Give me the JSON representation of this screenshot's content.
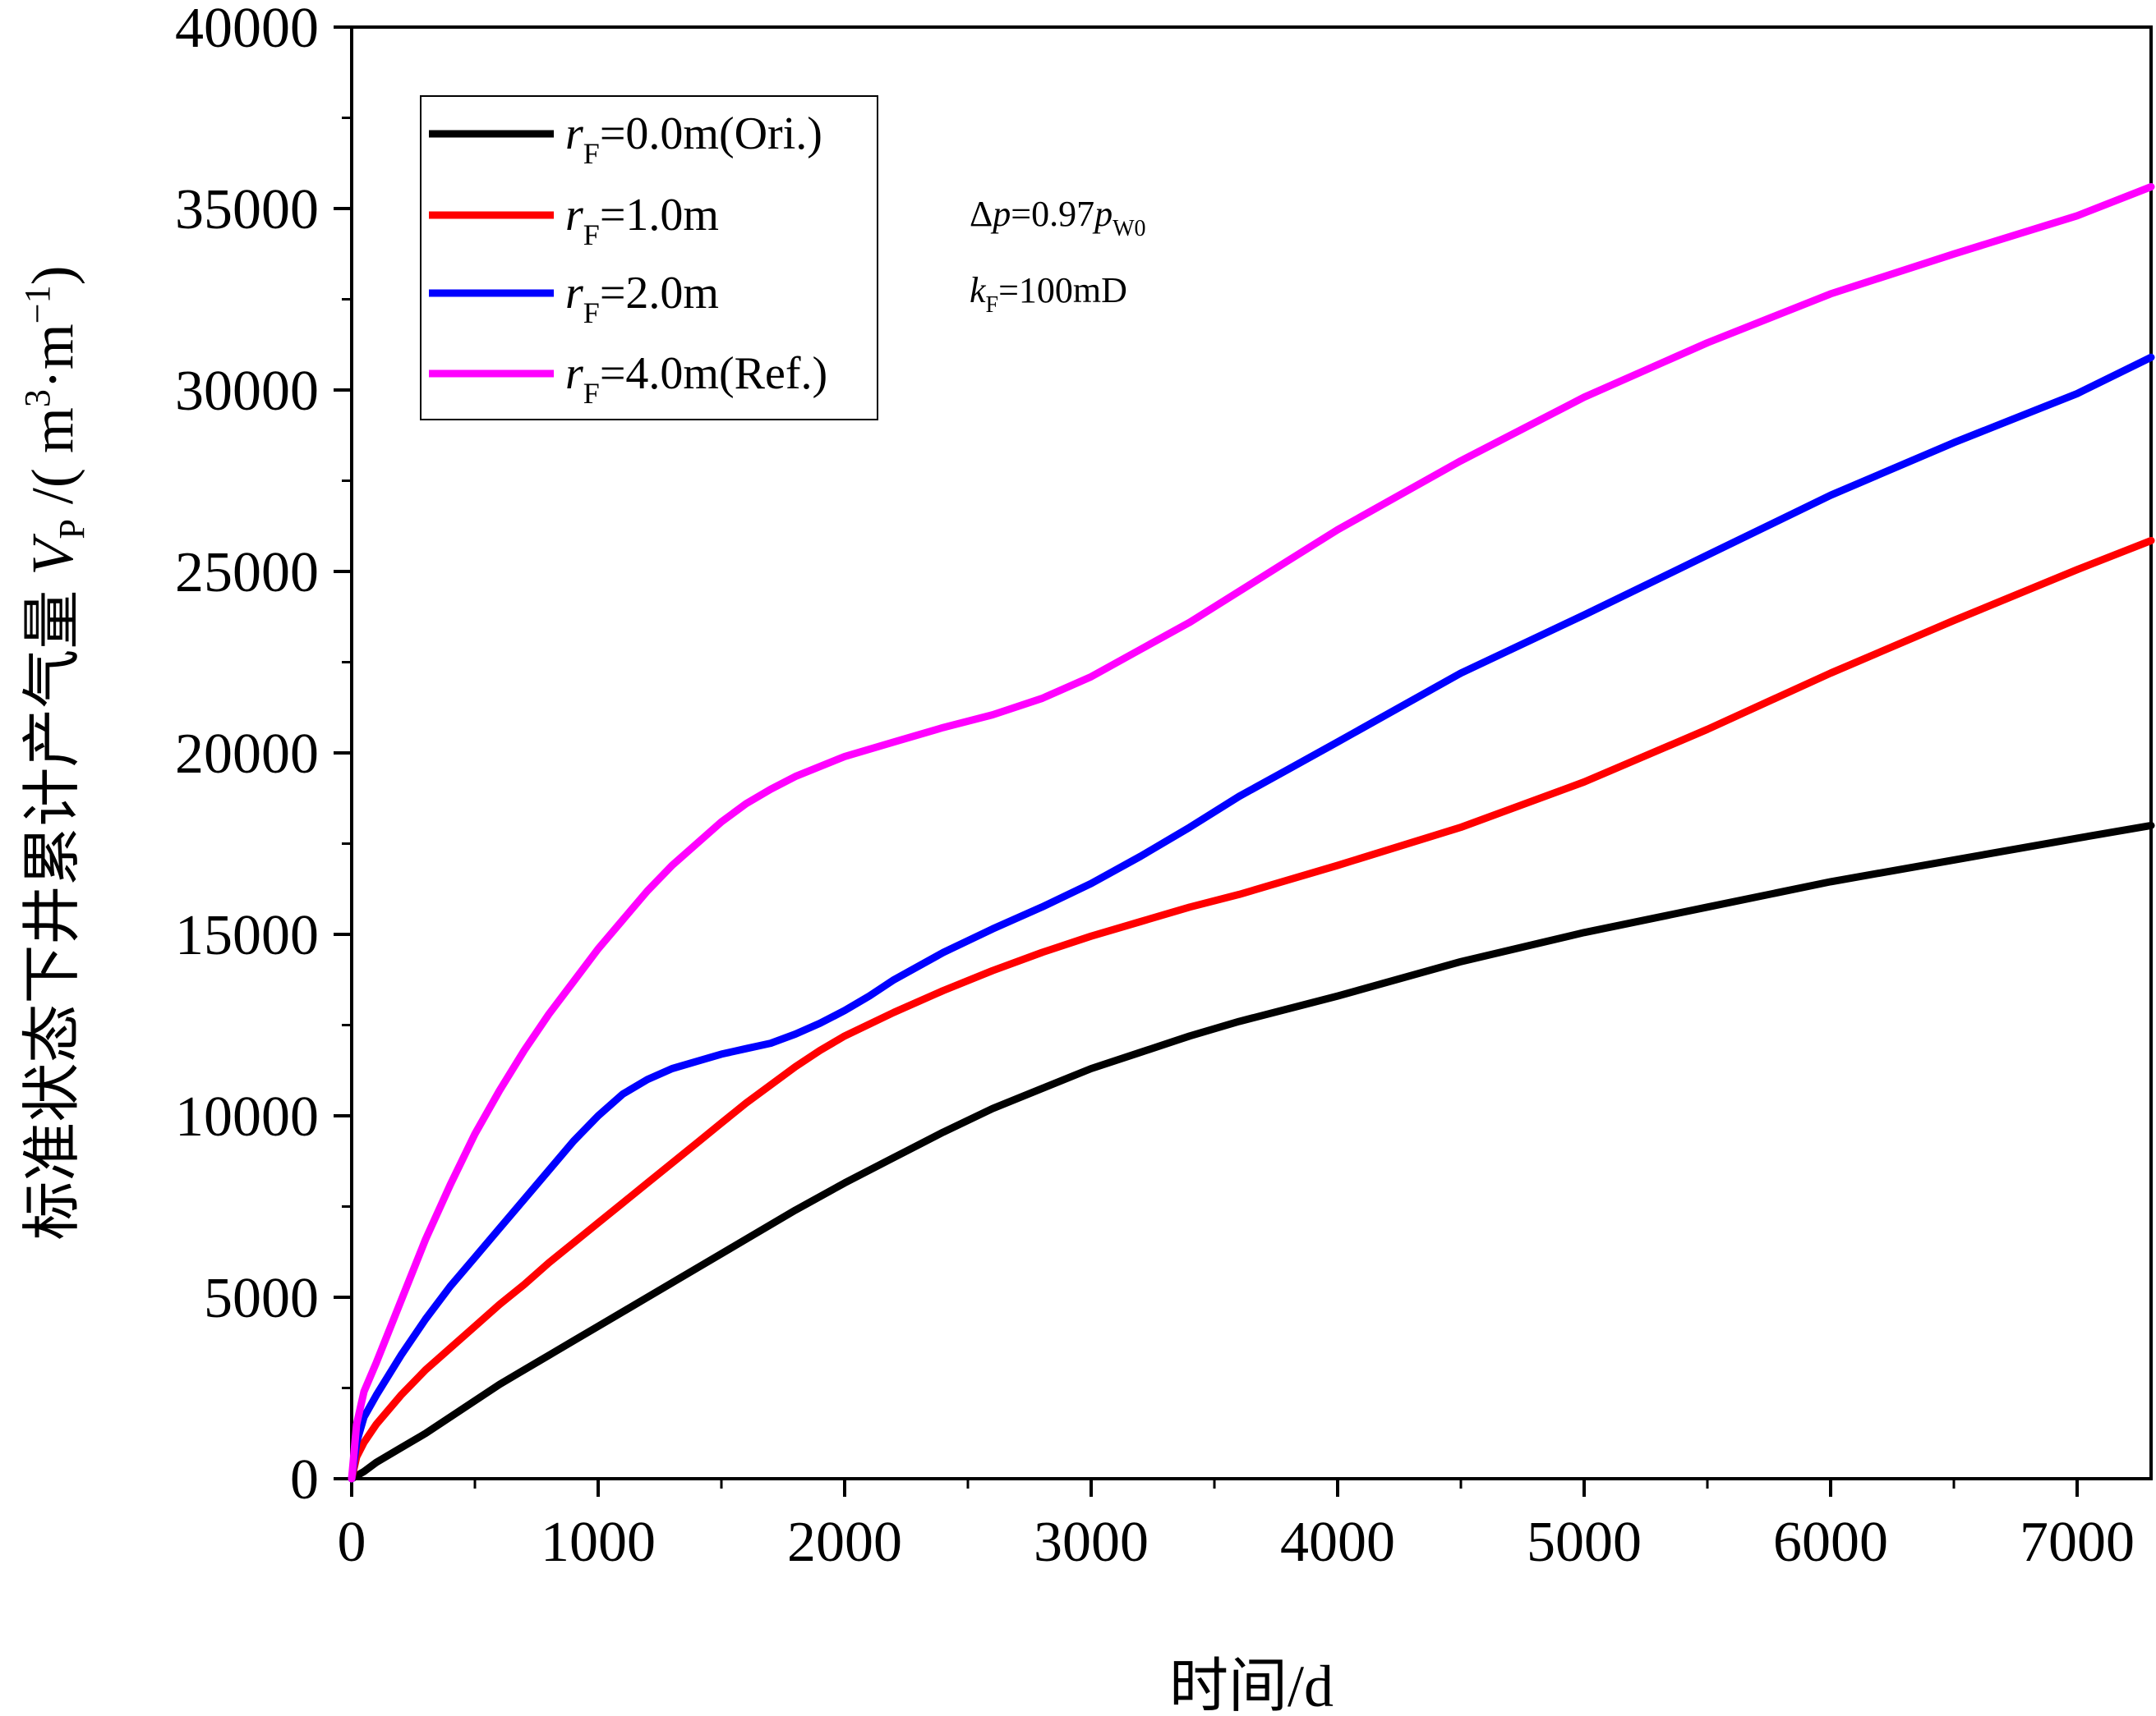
{
  "chart_data": {
    "type": "line",
    "title": "",
    "xlabel": "时间/d",
    "ylabel": {
      "prefix": "标准状态下井累计产气量 ",
      "var": "V",
      "var_sub": "P",
      "unit_open": " /( m",
      "unit_sup1": "3",
      "unit_mid": "·m",
      "unit_sup2": "−1",
      "unit_close": ")"
    },
    "xlim": [
      0,
      7300
    ],
    "ylim": [
      0,
      40000
    ],
    "x_ticks": [
      0,
      1000,
      2000,
      3000,
      4000,
      5000,
      6000,
      7000
    ],
    "y_ticks": [
      0,
      5000,
      10000,
      15000,
      20000,
      25000,
      30000,
      35000,
      40000
    ],
    "grid": false,
    "legend_position": "top-left",
    "annotations": [
      {
        "prefix": "Δ",
        "var": "p",
        "eq": "=0.97",
        "var2": "p",
        "sub2": "W0"
      },
      {
        "var": "k",
        "sub": "F",
        "eq": "=100mD"
      }
    ],
    "series": [
      {
        "label_var": "r",
        "label_sub": "F",
        "label_rest": "=0.0m(Ori.)",
        "color": "#000000",
        "points": [
          [
            0,
            0
          ],
          [
            50,
            200
          ],
          [
            100,
            450
          ],
          [
            200,
            850
          ],
          [
            300,
            1250
          ],
          [
            400,
            1700
          ],
          [
            500,
            2150
          ],
          [
            600,
            2600
          ],
          [
            700,
            3000
          ],
          [
            800,
            3400
          ],
          [
            900,
            3800
          ],
          [
            1000,
            4200
          ],
          [
            1200,
            5000
          ],
          [
            1400,
            5800
          ],
          [
            1600,
            6600
          ],
          [
            1800,
            7400
          ],
          [
            2000,
            8150
          ],
          [
            2200,
            8850
          ],
          [
            2400,
            9550
          ],
          [
            2600,
            10200
          ],
          [
            2800,
            10750
          ],
          [
            3000,
            11300
          ],
          [
            3200,
            11750
          ],
          [
            3400,
            12200
          ],
          [
            3600,
            12600
          ],
          [
            3800,
            12950
          ],
          [
            4000,
            13300
          ],
          [
            4500,
            14250
          ],
          [
            5000,
            15050
          ],
          [
            5500,
            15750
          ],
          [
            6000,
            16450
          ],
          [
            6500,
            17050
          ],
          [
            7000,
            17650
          ],
          [
            7300,
            18000
          ]
        ]
      },
      {
        "label_var": "r",
        "label_sub": "F",
        "label_rest": "=1.0m",
        "color": "#ff0000",
        "points": [
          [
            0,
            0
          ],
          [
            20,
            600
          ],
          [
            50,
            1000
          ],
          [
            100,
            1500
          ],
          [
            200,
            2300
          ],
          [
            300,
            3000
          ],
          [
            400,
            3600
          ],
          [
            500,
            4200
          ],
          [
            600,
            4800
          ],
          [
            700,
            5350
          ],
          [
            800,
            5950
          ],
          [
            900,
            6500
          ],
          [
            1000,
            7050
          ],
          [
            1100,
            7600
          ],
          [
            1200,
            8150
          ],
          [
            1300,
            8700
          ],
          [
            1400,
            9250
          ],
          [
            1500,
            9800
          ],
          [
            1600,
            10350
          ],
          [
            1700,
            10850
          ],
          [
            1800,
            11350
          ],
          [
            1900,
            11800
          ],
          [
            2000,
            12200
          ],
          [
            2200,
            12850
          ],
          [
            2400,
            13450
          ],
          [
            2600,
            14000
          ],
          [
            2800,
            14500
          ],
          [
            3000,
            14950
          ],
          [
            3200,
            15350
          ],
          [
            3400,
            15750
          ],
          [
            3600,
            16100
          ],
          [
            3800,
            16500
          ],
          [
            4000,
            16900
          ],
          [
            4500,
            17950
          ],
          [
            5000,
            19200
          ],
          [
            5500,
            20650
          ],
          [
            6000,
            22200
          ],
          [
            6500,
            23650
          ],
          [
            7000,
            25050
          ],
          [
            7300,
            25850
          ]
        ]
      },
      {
        "label_var": "r",
        "label_sub": "F",
        "label_rest": "=2.0m",
        "color": "#0000ff",
        "points": [
          [
            0,
            0
          ],
          [
            20,
            1000
          ],
          [
            50,
            1700
          ],
          [
            100,
            2300
          ],
          [
            200,
            3400
          ],
          [
            300,
            4400
          ],
          [
            400,
            5300
          ],
          [
            500,
            6100
          ],
          [
            600,
            6900
          ],
          [
            700,
            7700
          ],
          [
            800,
            8500
          ],
          [
            900,
            9300
          ],
          [
            1000,
            10000
          ],
          [
            1100,
            10600
          ],
          [
            1200,
            11000
          ],
          [
            1300,
            11300
          ],
          [
            1400,
            11500
          ],
          [
            1500,
            11700
          ],
          [
            1600,
            11850
          ],
          [
            1700,
            12000
          ],
          [
            1800,
            12250
          ],
          [
            1900,
            12550
          ],
          [
            2000,
            12900
          ],
          [
            2100,
            13300
          ],
          [
            2200,
            13750
          ],
          [
            2400,
            14500
          ],
          [
            2600,
            15150
          ],
          [
            2800,
            15750
          ],
          [
            3000,
            16400
          ],
          [
            3200,
            17150
          ],
          [
            3400,
            17950
          ],
          [
            3600,
            18800
          ],
          [
            3800,
            19550
          ],
          [
            4000,
            20300
          ],
          [
            4500,
            22200
          ],
          [
            5000,
            23800
          ],
          [
            5500,
            25450
          ],
          [
            6000,
            27100
          ],
          [
            6500,
            28550
          ],
          [
            7000,
            29900
          ],
          [
            7300,
            30900
          ]
        ]
      },
      {
        "label_var": "r",
        "label_sub": "F",
        "label_rest": "=4.0m(Ref.)",
        "color": "#ff00ff",
        "points": [
          [
            0,
            0
          ],
          [
            20,
            1500
          ],
          [
            50,
            2400
          ],
          [
            100,
            3200
          ],
          [
            200,
            4900
          ],
          [
            300,
            6600
          ],
          [
            400,
            8100
          ],
          [
            500,
            9500
          ],
          [
            600,
            10700
          ],
          [
            700,
            11800
          ],
          [
            800,
            12800
          ],
          [
            900,
            13700
          ],
          [
            1000,
            14600
          ],
          [
            1100,
            15400
          ],
          [
            1200,
            16200
          ],
          [
            1300,
            16900
          ],
          [
            1400,
            17500
          ],
          [
            1500,
            18100
          ],
          [
            1600,
            18600
          ],
          [
            1700,
            19000
          ],
          [
            1800,
            19350
          ],
          [
            2000,
            19900
          ],
          [
            2200,
            20300
          ],
          [
            2400,
            20700
          ],
          [
            2600,
            21050
          ],
          [
            2800,
            21500
          ],
          [
            3000,
            22100
          ],
          [
            3200,
            22850
          ],
          [
            3400,
            23600
          ],
          [
            3600,
            24450
          ],
          [
            3800,
            25300
          ],
          [
            4000,
            26150
          ],
          [
            4500,
            28050
          ],
          [
            5000,
            29800
          ],
          [
            5500,
            31300
          ],
          [
            6000,
            32650
          ],
          [
            6500,
            33750
          ],
          [
            7000,
            34800
          ],
          [
            7300,
            35600
          ]
        ]
      }
    ]
  }
}
